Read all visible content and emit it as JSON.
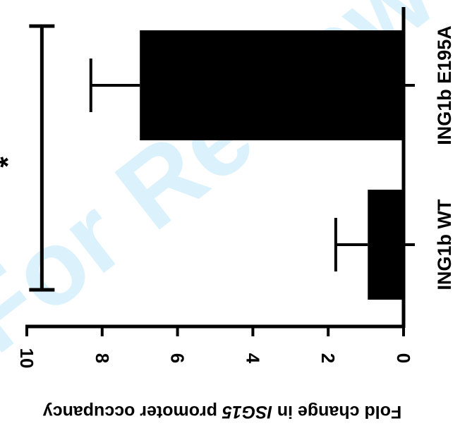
{
  "watermark": "For Review",
  "chart_data": {
    "type": "bar",
    "orientation": "horizontal",
    "rotated_figure": true,
    "categories": [
      "ING1b WT",
      "ING1b E195A"
    ],
    "values": [
      0.95,
      7.0
    ],
    "errors": [
      0.85,
      1.3
    ],
    "ylabel_parts": [
      "Fold change in ",
      "ISG15",
      " promoter occupancy"
    ],
    "xlabel": "",
    "ylim": [
      0,
      10
    ],
    "ticks": [
      "0",
      "2",
      "4",
      "6",
      "8",
      "10"
    ],
    "tick_values": [
      0,
      2,
      4,
      6,
      8,
      10
    ],
    "significance": {
      "label": "*",
      "value": 9.6,
      "between": [
        "ING1b WT",
        "ING1b E195A"
      ]
    },
    "bar_color": "#000000",
    "grid": false,
    "legend": "none"
  }
}
